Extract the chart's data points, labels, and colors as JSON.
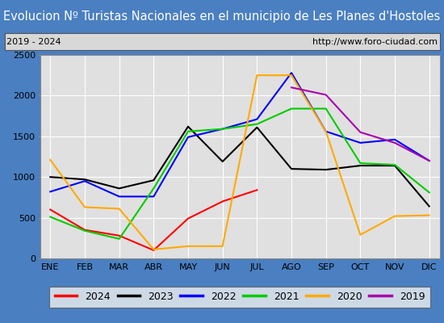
{
  "title": "Evolucion Nº Turistas Nacionales en el municipio de Les Planes d'Hostoles",
  "subtitle_left": "2019 - 2024",
  "subtitle_right": "http://www.foro-ciudad.com",
  "x_labels": [
    "ENE",
    "FEB",
    "MAR",
    "ABR",
    "MAY",
    "JUN",
    "JUL",
    "AGO",
    "SEP",
    "OCT",
    "NOV",
    "DIC"
  ],
  "ylim": [
    0,
    2500
  ],
  "yticks": [
    0,
    500,
    1000,
    1500,
    2000,
    2500
  ],
  "series": {
    "2024": {
      "color": "#ff0000",
      "data": [
        600,
        350,
        280,
        100,
        490,
        700,
        840,
        null,
        null,
        null,
        null,
        null
      ]
    },
    "2023": {
      "color": "#000000",
      "data": [
        1000,
        970,
        860,
        960,
        1620,
        1190,
        1610,
        1100,
        1090,
        1140,
        1140,
        640
      ]
    },
    "2022": {
      "color": "#0000ff",
      "data": [
        820,
        950,
        760,
        760,
        1490,
        1590,
        1710,
        2280,
        1560,
        1420,
        1460,
        1200
      ]
    },
    "2021": {
      "color": "#00cc00",
      "data": [
        510,
        340,
        240,
        860,
        1560,
        1590,
        1650,
        1840,
        1840,
        1170,
        1150,
        810
      ]
    },
    "2020": {
      "color": "#ffaa00",
      "data": [
        1210,
        630,
        610,
        110,
        150,
        150,
        2250,
        2250,
        1560,
        290,
        520,
        530
      ]
    },
    "2019": {
      "color": "#aa00aa",
      "data": [
        null,
        null,
        null,
        null,
        null,
        null,
        null,
        2100,
        2010,
        1550,
        1420,
        1200
      ]
    }
  },
  "title_bg_color": "#4a7fc1",
  "title_text_color": "#ffffff",
  "plot_bg_color": "#e0e0e0",
  "grid_color": "#ffffff",
  "outer_bg_color": "#4a7fc1",
  "subtitle_bg_color": "#d8d8d8",
  "border_color": "#888888",
  "title_fontsize": 10.5,
  "label_fontsize": 8,
  "legend_fontsize": 9
}
